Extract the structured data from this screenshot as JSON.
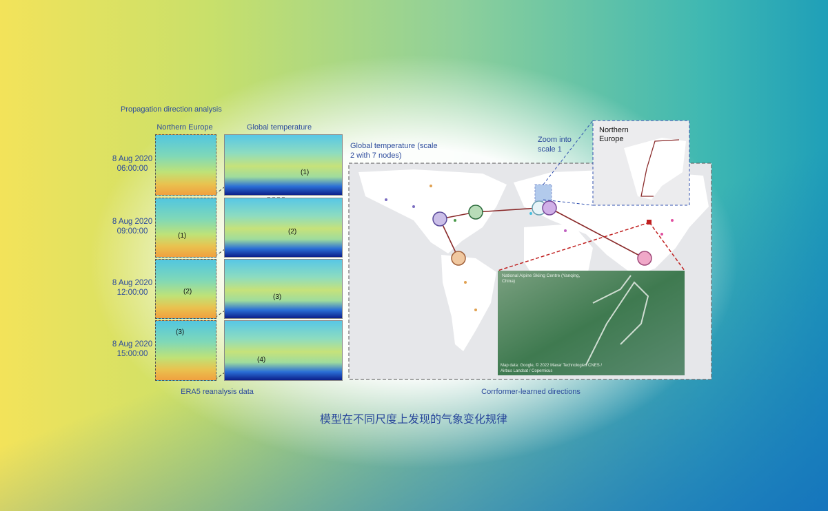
{
  "figure": {
    "left_panel": {
      "title": "Propagation direction analysis",
      "column_headers": [
        "Northern Europe",
        "Global temperature"
      ],
      "rows": [
        {
          "date": "8 Aug 2020",
          "time": "06:00:00",
          "global_label": "(1)"
        },
        {
          "date": "8 Aug 2020",
          "time": "09:00:00",
          "europe_label": "(1)",
          "global_label": "(2)"
        },
        {
          "date": "8 Aug 2020",
          "time": "12:00:00",
          "europe_label": "(2)",
          "global_label": "(3)"
        },
        {
          "date": "8 Aug 2020",
          "time": "15:00:00",
          "europe_label": "(3)",
          "global_label": "(4)"
        }
      ],
      "caption": "ERA5 reanalysis data"
    },
    "right_panel": {
      "title": "Global temperature (scale 2 with 7 nodes)",
      "zoom_label": "Zoom into scale 1",
      "inset_title": "Northern Europe",
      "photo_title": "National Alpine Skiing Centre (Yanqing, China)",
      "photo_credit": "Map data: Google, © 2022 Maxar Technologies CNES / Airbus Landsat / Copernicus",
      "caption": "Corrformer-learned directions"
    }
  },
  "slide_caption": "模型在不同尺度上发现的气象变化规律"
}
